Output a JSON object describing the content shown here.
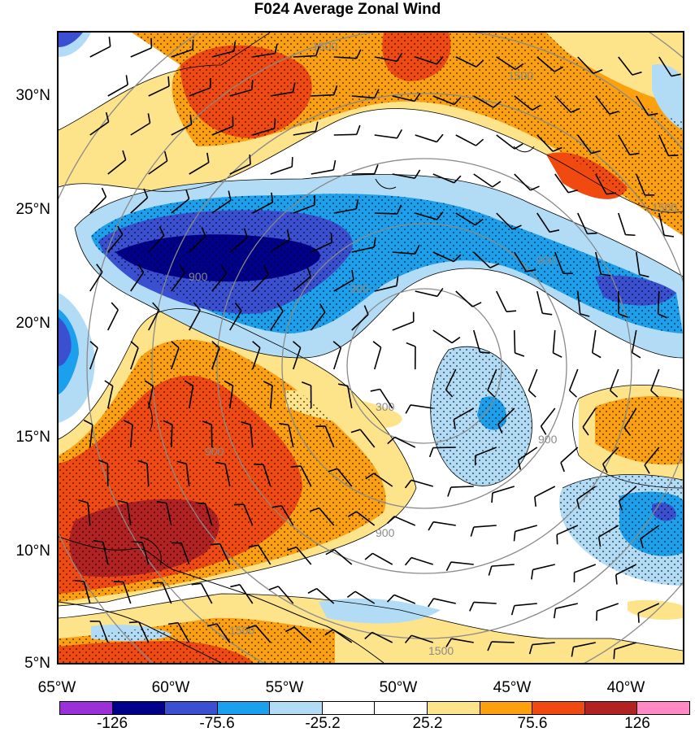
{
  "title": "F024 Average Zonal Wind",
  "lat_labels": [
    "30°N",
    "25°N",
    "20°N",
    "15°N",
    "10°N",
    "5°N"
  ],
  "lon_labels": [
    "65°W",
    "60°W",
    "55°W",
    "50°W",
    "45°W",
    "40°W"
  ],
  "colorbar": {
    "colors": [
      "#9b30d8",
      "#00008b",
      "#3a50d0",
      "#1aa0ec",
      "#b2dcf6",
      "#ffffff",
      "#ffffff",
      "#fde38a",
      "#fca10d",
      "#f04a10",
      "#b22222",
      "#ff89c4"
    ],
    "labels": [
      "-126",
      "-75.6",
      "-25.2",
      "25.2",
      "75.6",
      "126"
    ]
  },
  "contour_labels": [
    "1500",
    "1500",
    "1500",
    "1500",
    "1500",
    "900",
    "900",
    "900",
    "900",
    "900",
    "300",
    "300"
  ]
}
